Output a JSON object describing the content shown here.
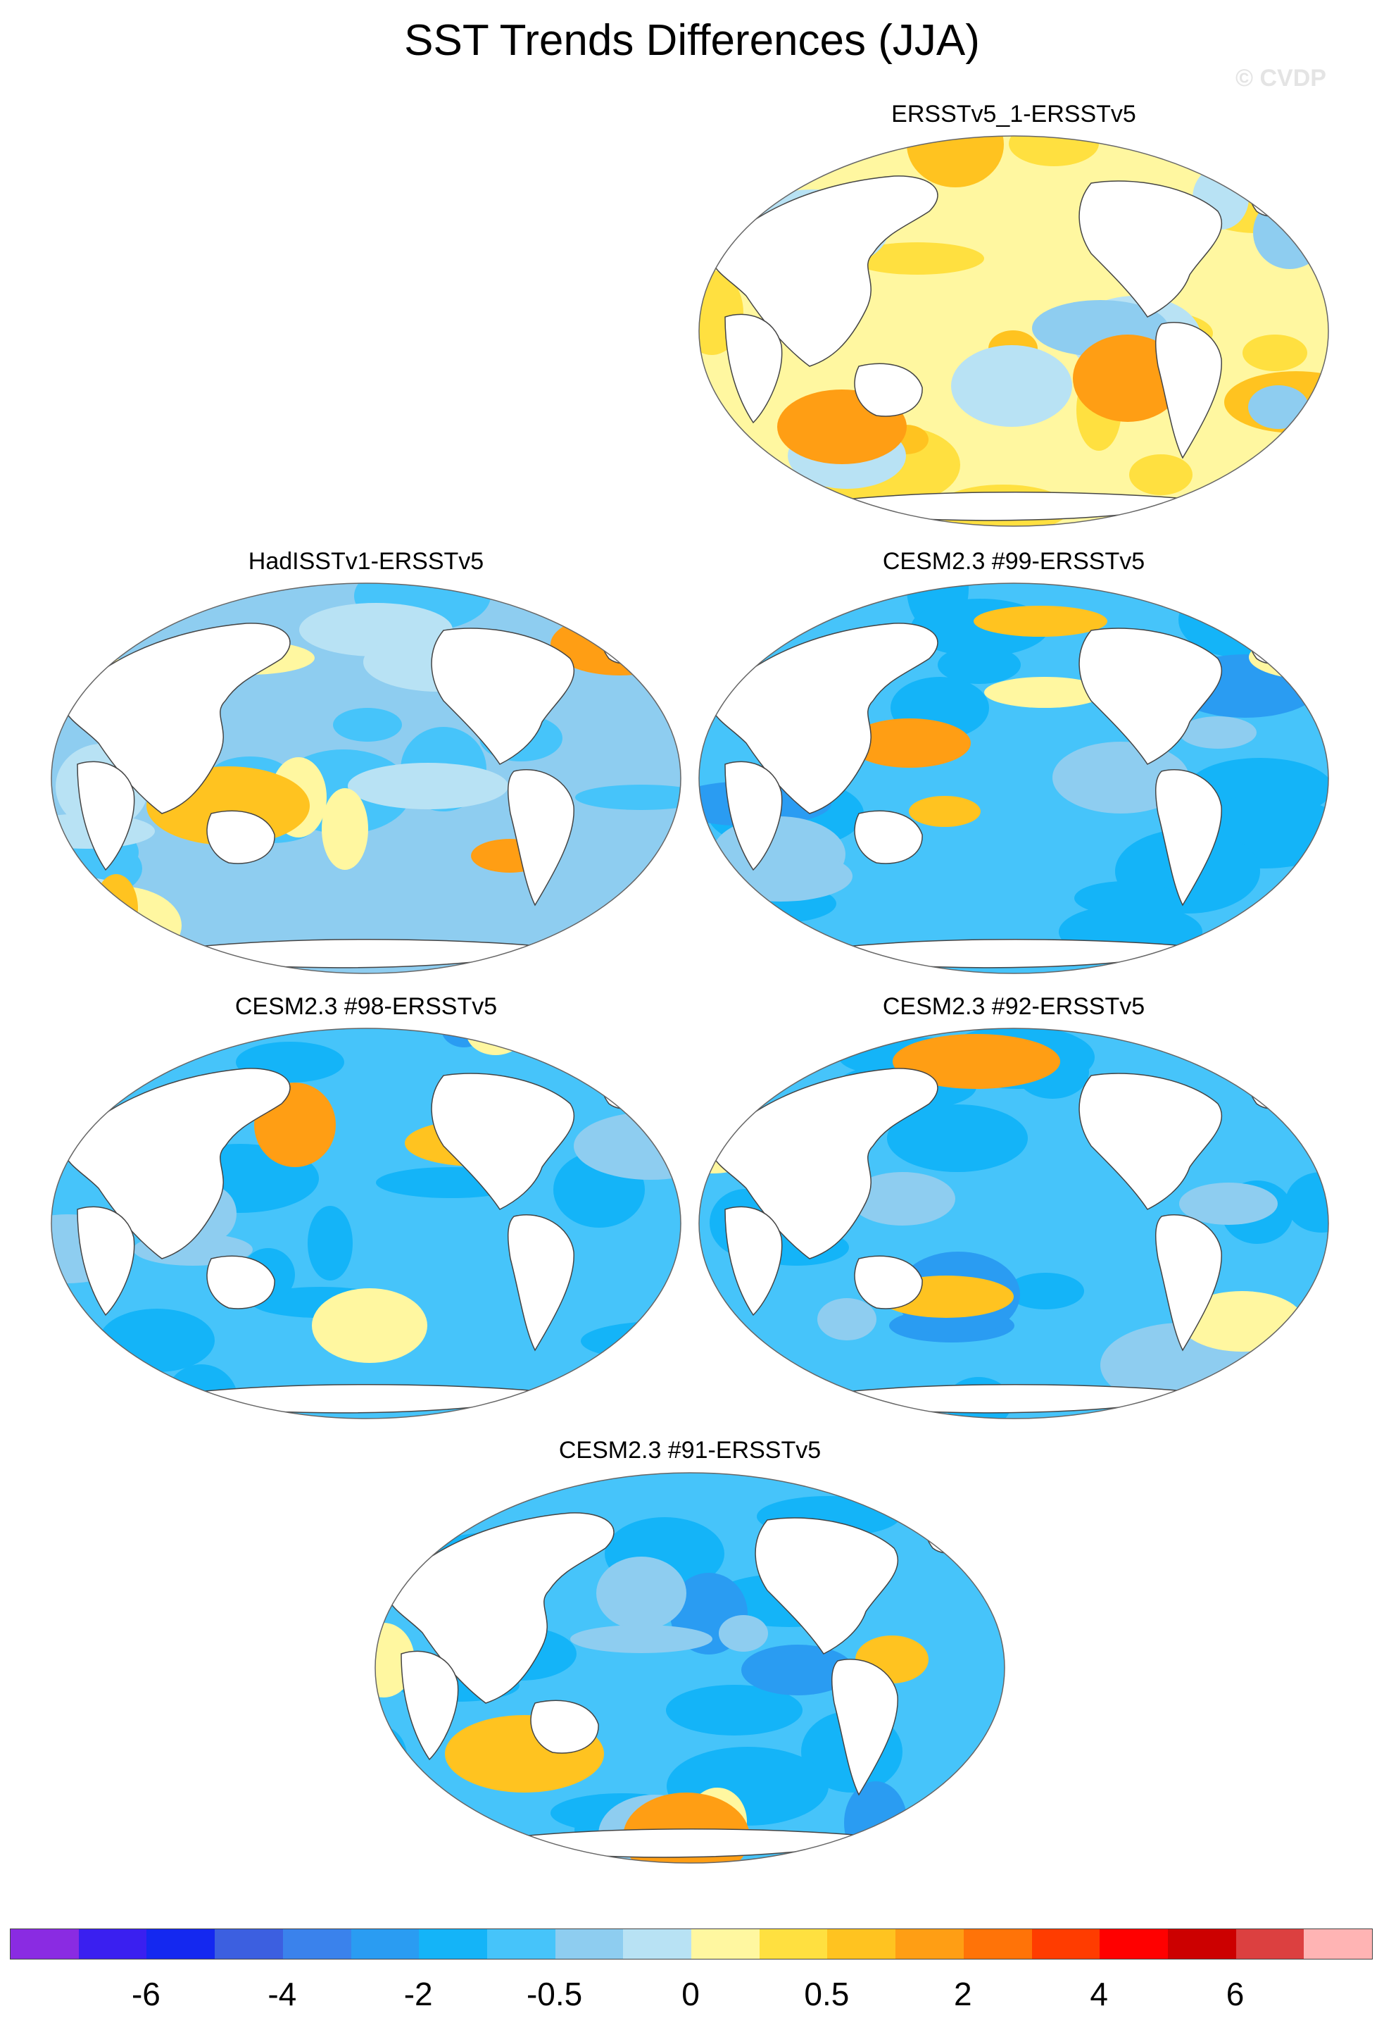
{
  "title": "SST Trends Differences (JJA)",
  "copyright": "© CVDP",
  "panels": [
    {
      "label": "ERSSTv5_1-ERSSTv5",
      "theme": "warm"
    },
    {
      "label": "HadISSTv1-ERSSTv5",
      "theme": "mixed"
    },
    {
      "label": "CESM2.3 #99-ERSSTv5",
      "theme": "cool"
    },
    {
      "label": "CESM2.3 #98-ERSSTv5",
      "theme": "cool"
    },
    {
      "label": "CESM2.3 #92-ERSSTv5",
      "theme": "cool"
    },
    {
      "label": "CESM2.3 #91-ERSSTv5",
      "theme": "cool"
    }
  ],
  "colorbar": {
    "colors": [
      "#8a2be2",
      "#3a1ff0",
      "#1428f0",
      "#3c5fe0",
      "#3a82ec",
      "#2a9cf2",
      "#14b4f8",
      "#46c4fa",
      "#8ecdf0",
      "#b8e2f4",
      "#fff7a0",
      "#ffe040",
      "#ffc320",
      "#ff9e14",
      "#ff7308",
      "#ff3c00",
      "#ff0000",
      "#cc0000",
      "#dc4040",
      "#ffb4b4"
    ],
    "labels": [
      "-6",
      "-4",
      "-2",
      "-0.5",
      "0",
      "0.5",
      "2",
      "4",
      "6"
    ]
  }
}
